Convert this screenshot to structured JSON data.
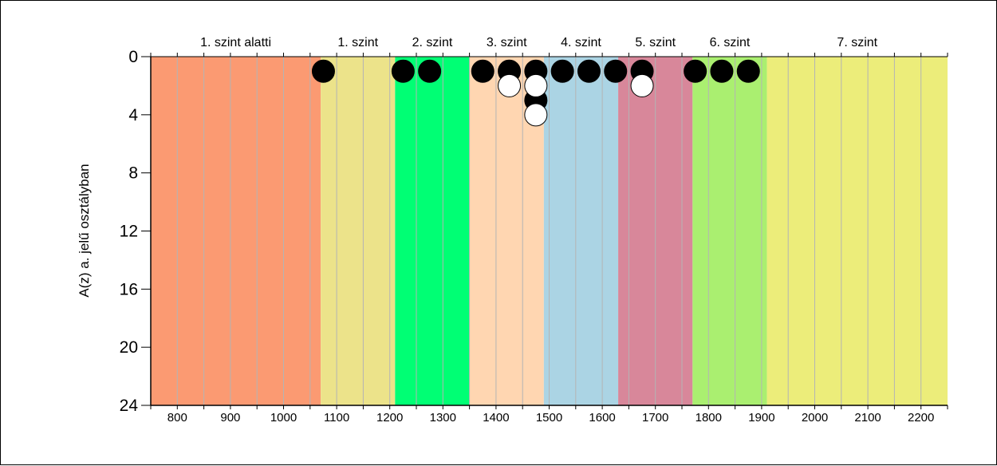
{
  "chart_data": {
    "type": "scatter",
    "title": "",
    "xlabel": "",
    "ylabel": "A(z) a. jelű osztályban",
    "xlim": [
      750,
      2250
    ],
    "ylim": [
      24,
      0
    ],
    "x_ticks": [
      800,
      900,
      1000,
      1100,
      1200,
      1300,
      1400,
      1500,
      1600,
      1700,
      1800,
      1900,
      2000,
      2100,
      2200
    ],
    "y_ticks": [
      0,
      4,
      8,
      12,
      16,
      20,
      24
    ],
    "grid": "vertical every 50",
    "bands": [
      {
        "label": "1. szint alatti",
        "from": 750,
        "to": 1070,
        "color": "#fb9a72"
      },
      {
        "label": "1. szint",
        "from": 1070,
        "to": 1210,
        "color": "#ece38a"
      },
      {
        "label": "2. szint",
        "from": 1210,
        "to": 1350,
        "color": "#00ff74"
      },
      {
        "label": "3. szint",
        "from": 1350,
        "to": 1490,
        "color": "#ffd6b1"
      },
      {
        "label": "4. szint",
        "from": 1490,
        "to": 1630,
        "color": "#abd4e4"
      },
      {
        "label": "5. szint",
        "from": 1630,
        "to": 1770,
        "color": "#d8879a"
      },
      {
        "label": "6. szint",
        "from": 1770,
        "to": 1910,
        "color": "#aaef70"
      },
      {
        "label": "7. szint",
        "from": 1910,
        "to": 2250,
        "color": "#eced7a"
      }
    ],
    "series": [
      {
        "color": "#000000",
        "points": [
          [
            1075,
            1
          ],
          [
            1225,
            1
          ],
          [
            1275,
            1
          ],
          [
            1375,
            1
          ],
          [
            1425,
            1
          ],
          [
            1475,
            1
          ],
          [
            1475,
            3
          ],
          [
            1525,
            1
          ],
          [
            1575,
            1
          ],
          [
            1625,
            1
          ],
          [
            1675,
            1
          ],
          [
            1775,
            1
          ],
          [
            1825,
            1
          ],
          [
            1875,
            1
          ]
        ]
      },
      {
        "color": "#ffffff",
        "points": [
          [
            1425,
            2
          ],
          [
            1475,
            2
          ],
          [
            1475,
            4
          ],
          [
            1675,
            2
          ]
        ]
      }
    ]
  }
}
